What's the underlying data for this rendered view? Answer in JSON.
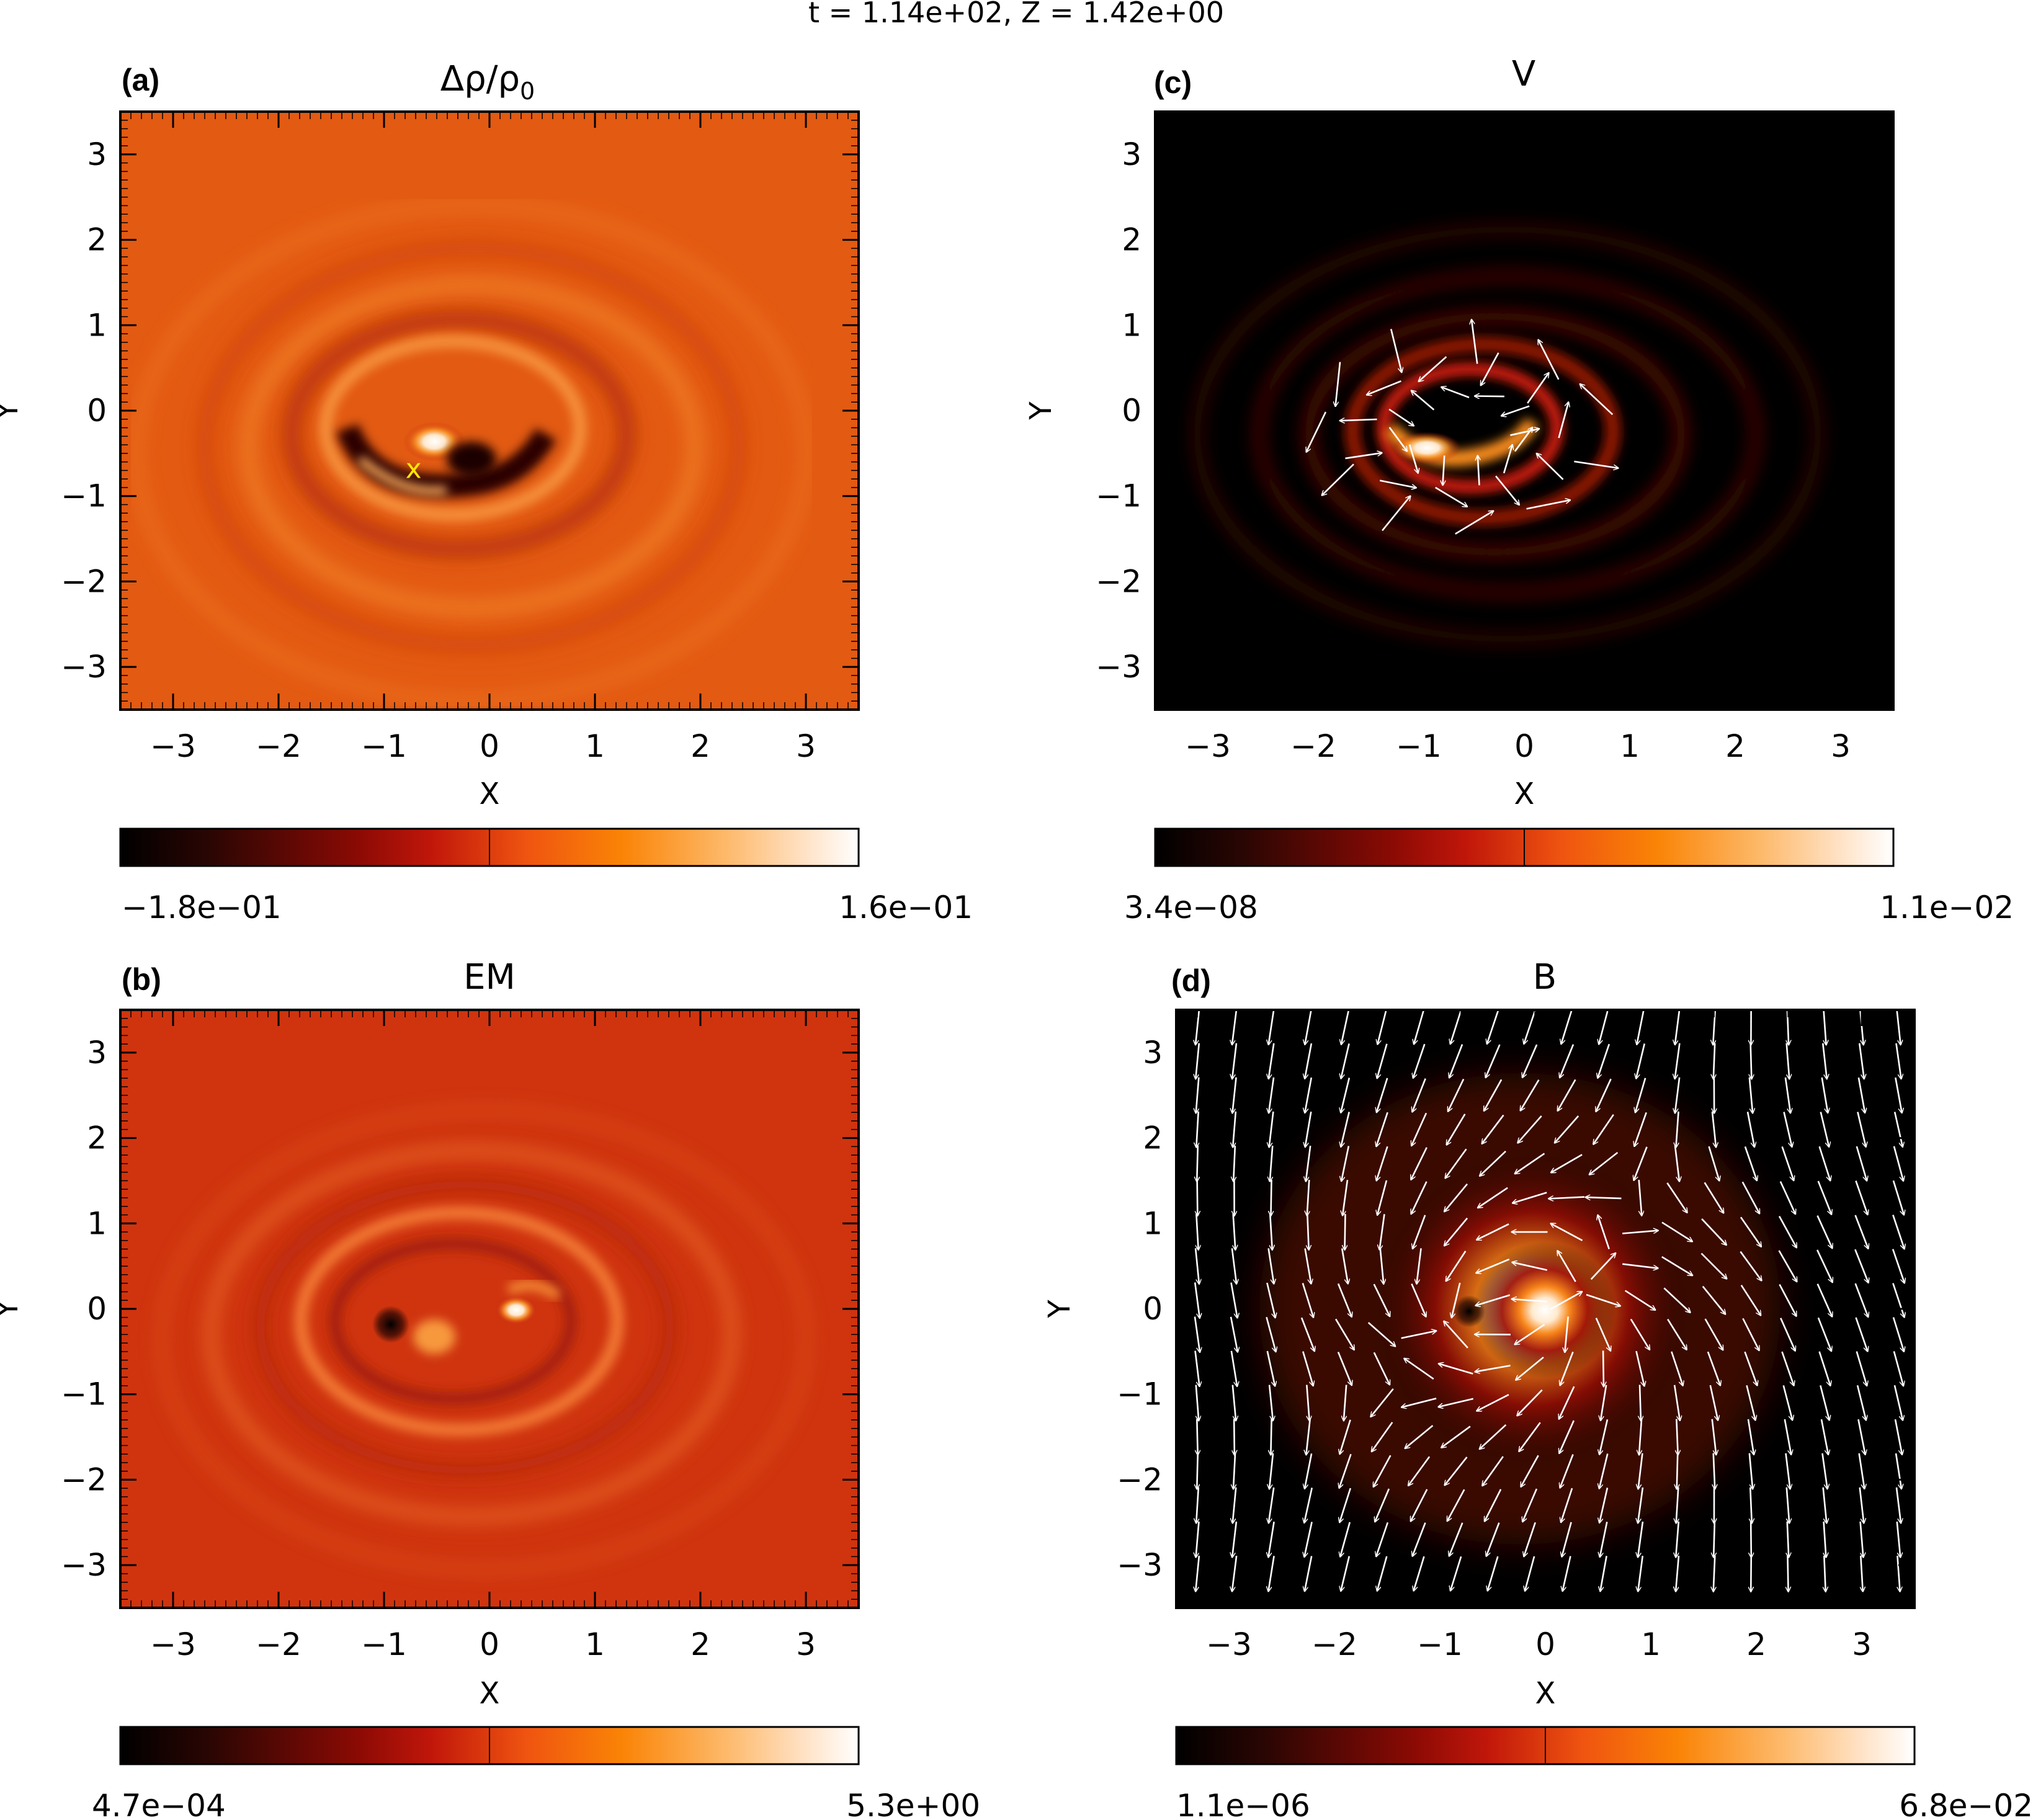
{
  "figure_title": "t = 1.14e+02, Z = 1.42e+00",
  "colors": {
    "frame": "#000000",
    "text": "#000000",
    "arrow": "#ffffff",
    "marker": "#ffe600"
  },
  "chart_data": [
    {
      "id": "a",
      "type": "heatmap",
      "panel_label": "(a)",
      "title_main": "Δρ/ρ",
      "title_sub": "0",
      "xlabel": "X",
      "ylabel": "Y",
      "xlim": [
        -3.5,
        3.5
      ],
      "ylim": [
        -3.5,
        3.5
      ],
      "xticks": [
        -3,
        -2,
        -1,
        0,
        1,
        2,
        3
      ],
      "yticks": [
        -3,
        -2,
        -1,
        0,
        1,
        2,
        3
      ],
      "tick_labels": [
        "−3",
        "−2",
        "−1",
        "0",
        "1",
        "2",
        "3"
      ],
      "colorbar": {
        "min_label": "−1.8e−01",
        "max_label": "1.6e−01"
      },
      "marker": {
        "label": "x",
        "x": -0.72,
        "y": -0.68
      },
      "background": "#e35a12"
    },
    {
      "id": "c",
      "type": "heatmap",
      "panel_label": "(c)",
      "title_main": "V",
      "title_sub": "",
      "xlabel": "X",
      "ylabel": "Y",
      "xlim": [
        -3.5,
        3.5
      ],
      "ylim": [
        -3.5,
        3.5
      ],
      "xticks": [
        -3,
        -2,
        -1,
        0,
        1,
        2,
        3
      ],
      "yticks": [
        -3,
        -2,
        -1,
        0,
        1,
        2,
        3
      ],
      "tick_labels": [
        "−3",
        "−2",
        "−1",
        "0",
        "1",
        "2",
        "3"
      ],
      "colorbar": {
        "min_label": "3.4e−08",
        "max_label": "1.1e−02"
      },
      "vectors": "velocity",
      "background": "#000000"
    },
    {
      "id": "b",
      "type": "heatmap",
      "panel_label": "(b)",
      "title_main": "EM",
      "title_sub": "",
      "xlabel": "X",
      "ylabel": "Y",
      "xlim": [
        -3.5,
        3.5
      ],
      "ylim": [
        -3.5,
        3.5
      ],
      "xticks": [
        -3,
        -2,
        -1,
        0,
        1,
        2,
        3
      ],
      "yticks": [
        -3,
        -2,
        -1,
        0,
        1,
        2,
        3
      ],
      "tick_labels": [
        "−3",
        "−2",
        "−1",
        "0",
        "1",
        "2",
        "3"
      ],
      "colorbar": {
        "min_label": "4.7e−04",
        "max_label": "5.3e+00"
      },
      "background": "#cf340f"
    },
    {
      "id": "d",
      "type": "heatmap",
      "panel_label": "(d)",
      "title_main": "B",
      "title_sub": "",
      "xlabel": "X",
      "ylabel": "Y",
      "xlim": [
        -3.5,
        3.5
      ],
      "ylim": [
        -3.5,
        3.5
      ],
      "xticks": [
        -3,
        -2,
        -1,
        0,
        1,
        2,
        3
      ],
      "yticks": [
        -3,
        -2,
        -1,
        0,
        1,
        2,
        3
      ],
      "tick_labels": [
        "−3",
        "−2",
        "−1",
        "0",
        "1",
        "2",
        "3"
      ],
      "colorbar": {
        "min_label": "1.1e−06",
        "max_label": "6.8e−02"
      },
      "vectors": "magnetic",
      "sources": [
        {
          "x": 0.0,
          "y": 0.0,
          "kind": "bright"
        },
        {
          "x": -0.72,
          "y": -0.04,
          "kind": "null"
        }
      ],
      "background": "#000000"
    }
  ]
}
